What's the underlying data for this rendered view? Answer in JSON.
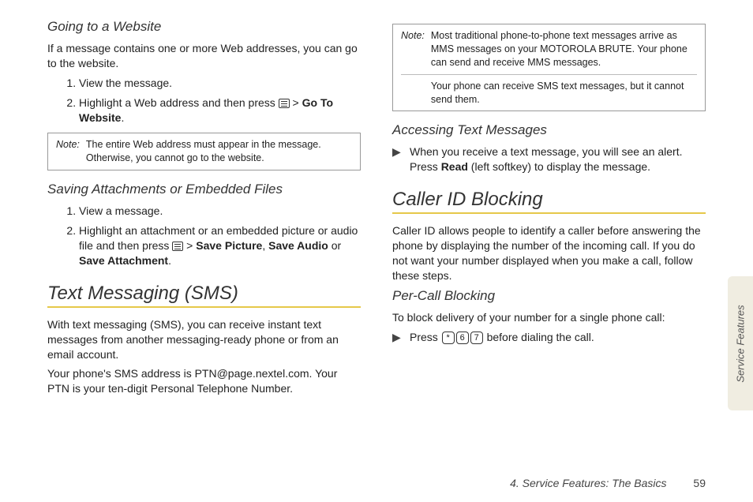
{
  "side_tab": "Service Features",
  "footer": {
    "chapter": "4. Service Features: The Basics",
    "page": "59"
  },
  "left": {
    "h_website": "Going to a Website",
    "p_website": "If a message contains one or more Web addresses, you can go to the website.",
    "steps_web": {
      "s1": "View the message.",
      "s2a": "Highlight a Web address and then press ",
      "s2b": " > ",
      "s2c": "Go To Website",
      "s2d": "."
    },
    "note_web_label": "Note:",
    "note_web": "The entire Web address must appear in the message. Otherwise, you cannot go to the website.",
    "h_saving": "Saving Attachments or Embedded Files",
    "steps_save": {
      "s1": "View a message.",
      "s2a": "Highlight an attachment or an embedded picture or audio file and then press ",
      "s2b": " > ",
      "s2c": "Save Picture",
      "s2d": ", ",
      "s2e": "Save Audio",
      "s2f": " or ",
      "s2g": "Save Attachment",
      "s2h": "."
    },
    "h_sms": "Text Messaging (SMS)",
    "p_sms1": "With text messaging (SMS), you can receive instant text messages from another messaging-ready phone or from an email account.",
    "p_sms2": "Your phone's SMS address is PTN@page.nextel.com. Your PTN is your ten-digit Personal Telephone Number."
  },
  "right": {
    "note_label": "Note:",
    "note_p1": "Most traditional phone-to-phone text messages arrive as MMS messages on your MOTOROLA BRUTE. Your phone can send and receive MMS messages.",
    "note_p2": "Your phone can receive SMS text messages, but it cannot send them.",
    "h_access": "Accessing Text Messages",
    "access_a": "When you receive a text message, you will see an alert. Press ",
    "access_b": "Read",
    "access_c": " (left softkey) to display the message.",
    "h_cid": "Caller ID Blocking",
    "p_cid": "Caller ID allows people to identify a caller before answering the phone by displaying the number of the incoming call. If you do not want your number displayed when you make a call, follow these steps.",
    "h_percall": "Per-Call Blocking",
    "p_percall": "To block delivery of your number for a single phone call:",
    "press_a": "Press ",
    "key1": "*",
    "key2": "6",
    "key3": "7",
    "press_b": " before dialing the call."
  }
}
